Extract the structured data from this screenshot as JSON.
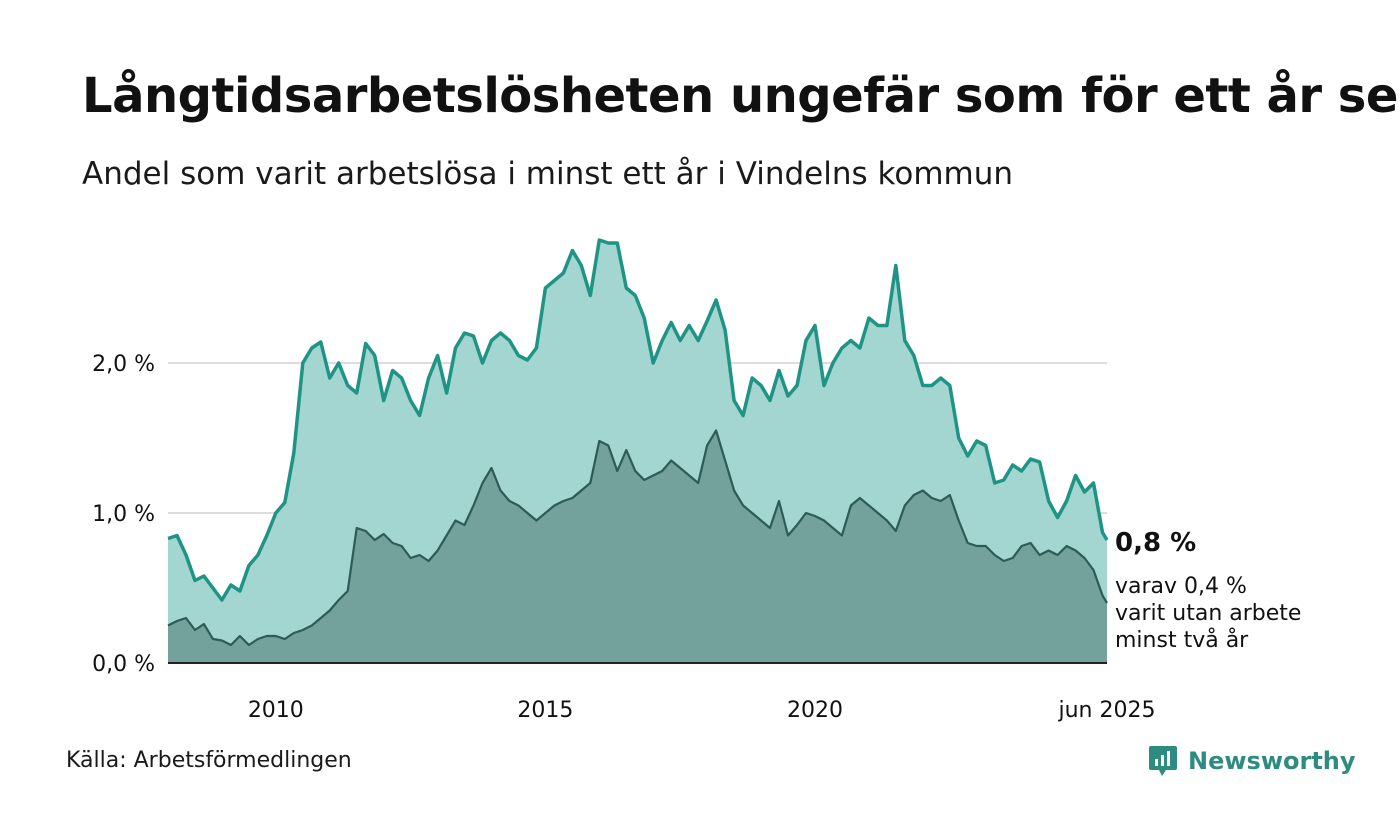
{
  "title": "Långtidsarbetslösheten ungefär som för ett år sen",
  "subtitle": "Andel som varit arbetslösa i minst ett år i Vindelns kommun",
  "source": "Källa: Arbetsförmedlingen",
  "brand": {
    "name": "Newsworthy",
    "icon": "newsworthy-logo-icon",
    "color": "#2e8b80"
  },
  "colors": {
    "total_line": "#1f9485",
    "total_fill": "#a3d6d1",
    "two_year_line": "#2c5c55",
    "two_year_fill": "#72a29b",
    "grid": "#dddddd"
  },
  "end_labels": {
    "total_value": "0,8 %",
    "two_year_text": [
      "varav 0,4 %",
      "varit utan arbete",
      "minst två år"
    ]
  },
  "chart_data": {
    "type": "area",
    "x_range": [
      "2008-01",
      "2025-06"
    ],
    "y_range": [
      0,
      3.0
    ],
    "grid": true,
    "y_ticks": [
      {
        "value": 0,
        "label": "0,0 %"
      },
      {
        "value": 1,
        "label": "1,0 %"
      },
      {
        "value": 2,
        "label": "2,0 %"
      }
    ],
    "x_ticks": [
      {
        "date": "2010-01",
        "label": "2010"
      },
      {
        "date": "2015-01",
        "label": "2015"
      },
      {
        "date": "2020-01",
        "label": "2020"
      },
      {
        "date": "2025-06",
        "label": "jun 2025"
      }
    ],
    "series": [
      {
        "key": "total",
        "points": [
          [
            "2008-01",
            0.83
          ],
          [
            "2008-03",
            0.85
          ],
          [
            "2008-05",
            0.72
          ],
          [
            "2008-07",
            0.55
          ],
          [
            "2008-09",
            0.58
          ],
          [
            "2008-11",
            0.5
          ],
          [
            "2009-01",
            0.42
          ],
          [
            "2009-03",
            0.52
          ],
          [
            "2009-05",
            0.48
          ],
          [
            "2009-07",
            0.65
          ],
          [
            "2009-09",
            0.72
          ],
          [
            "2009-11",
            0.85
          ],
          [
            "2010-01",
            1.0
          ],
          [
            "2010-03",
            1.07
          ],
          [
            "2010-05",
            1.4
          ],
          [
            "2010-07",
            2.0
          ],
          [
            "2010-09",
            2.1
          ],
          [
            "2010-11",
            2.14
          ],
          [
            "2011-01",
            1.9
          ],
          [
            "2011-03",
            2.0
          ],
          [
            "2011-05",
            1.85
          ],
          [
            "2011-07",
            1.8
          ],
          [
            "2011-09",
            2.13
          ],
          [
            "2011-11",
            2.05
          ],
          [
            "2012-01",
            1.75
          ],
          [
            "2012-03",
            1.95
          ],
          [
            "2012-05",
            1.9
          ],
          [
            "2012-07",
            1.75
          ],
          [
            "2012-09",
            1.65
          ],
          [
            "2012-11",
            1.9
          ],
          [
            "2013-01",
            2.05
          ],
          [
            "2013-03",
            1.8
          ],
          [
            "2013-05",
            2.1
          ],
          [
            "2013-07",
            2.2
          ],
          [
            "2013-09",
            2.18
          ],
          [
            "2013-11",
            2.0
          ],
          [
            "2014-01",
            2.15
          ],
          [
            "2014-03",
            2.2
          ],
          [
            "2014-05",
            2.15
          ],
          [
            "2014-07",
            2.05
          ],
          [
            "2014-09",
            2.02
          ],
          [
            "2014-11",
            2.1
          ],
          [
            "2015-01",
            2.5
          ],
          [
            "2015-03",
            2.55
          ],
          [
            "2015-05",
            2.6
          ],
          [
            "2015-07",
            2.75
          ],
          [
            "2015-09",
            2.65
          ],
          [
            "2015-11",
            2.45
          ],
          [
            "2016-01",
            2.82
          ],
          [
            "2016-03",
            2.8
          ],
          [
            "2016-05",
            2.8
          ],
          [
            "2016-07",
            2.5
          ],
          [
            "2016-09",
            2.45
          ],
          [
            "2016-11",
            2.3
          ],
          [
            "2017-01",
            2.0
          ],
          [
            "2017-03",
            2.15
          ],
          [
            "2017-05",
            2.27
          ],
          [
            "2017-07",
            2.15
          ],
          [
            "2017-09",
            2.25
          ],
          [
            "2017-11",
            2.15
          ],
          [
            "2018-01",
            2.28
          ],
          [
            "2018-03",
            2.42
          ],
          [
            "2018-05",
            2.22
          ],
          [
            "2018-07",
            1.75
          ],
          [
            "2018-09",
            1.65
          ],
          [
            "2018-11",
            1.9
          ],
          [
            "2019-01",
            1.85
          ],
          [
            "2019-03",
            1.75
          ],
          [
            "2019-05",
            1.95
          ],
          [
            "2019-07",
            1.78
          ],
          [
            "2019-09",
            1.85
          ],
          [
            "2019-11",
            2.15
          ],
          [
            "2020-01",
            2.25
          ],
          [
            "2020-03",
            1.85
          ],
          [
            "2020-05",
            2.0
          ],
          [
            "2020-07",
            2.1
          ],
          [
            "2020-09",
            2.15
          ],
          [
            "2020-11",
            2.1
          ],
          [
            "2021-01",
            2.3
          ],
          [
            "2021-03",
            2.25
          ],
          [
            "2021-05",
            2.25
          ],
          [
            "2021-07",
            2.65
          ],
          [
            "2021-09",
            2.15
          ],
          [
            "2021-11",
            2.05
          ],
          [
            "2022-01",
            1.85
          ],
          [
            "2022-03",
            1.85
          ],
          [
            "2022-05",
            1.9
          ],
          [
            "2022-07",
            1.85
          ],
          [
            "2022-09",
            1.5
          ],
          [
            "2022-11",
            1.38
          ],
          [
            "2023-01",
            1.48
          ],
          [
            "2023-03",
            1.45
          ],
          [
            "2023-05",
            1.2
          ],
          [
            "2023-07",
            1.22
          ],
          [
            "2023-09",
            1.32
          ],
          [
            "2023-11",
            1.28
          ],
          [
            "2024-01",
            1.36
          ],
          [
            "2024-03",
            1.34
          ],
          [
            "2024-05",
            1.08
          ],
          [
            "2024-07",
            0.97
          ],
          [
            "2024-09",
            1.08
          ],
          [
            "2024-11",
            1.25
          ],
          [
            "2025-01",
            1.14
          ],
          [
            "2025-03",
            1.2
          ],
          [
            "2025-05",
            0.87
          ],
          [
            "2025-06",
            0.82
          ]
        ]
      },
      {
        "key": "two_year",
        "points": [
          [
            "2008-01",
            0.25
          ],
          [
            "2008-03",
            0.28
          ],
          [
            "2008-05",
            0.3
          ],
          [
            "2008-07",
            0.22
          ],
          [
            "2008-09",
            0.26
          ],
          [
            "2008-11",
            0.16
          ],
          [
            "2009-01",
            0.15
          ],
          [
            "2009-03",
            0.12
          ],
          [
            "2009-05",
            0.18
          ],
          [
            "2009-07",
            0.12
          ],
          [
            "2009-09",
            0.16
          ],
          [
            "2009-11",
            0.18
          ],
          [
            "2010-01",
            0.18
          ],
          [
            "2010-03",
            0.16
          ],
          [
            "2010-05",
            0.2
          ],
          [
            "2010-07",
            0.22
          ],
          [
            "2010-09",
            0.25
          ],
          [
            "2010-11",
            0.3
          ],
          [
            "2011-01",
            0.35
          ],
          [
            "2011-03",
            0.42
          ],
          [
            "2011-05",
            0.48
          ],
          [
            "2011-07",
            0.9
          ],
          [
            "2011-09",
            0.88
          ],
          [
            "2011-11",
            0.82
          ],
          [
            "2012-01",
            0.86
          ],
          [
            "2012-03",
            0.8
          ],
          [
            "2012-05",
            0.78
          ],
          [
            "2012-07",
            0.7
          ],
          [
            "2012-09",
            0.72
          ],
          [
            "2012-11",
            0.68
          ],
          [
            "2013-01",
            0.75
          ],
          [
            "2013-03",
            0.85
          ],
          [
            "2013-05",
            0.95
          ],
          [
            "2013-07",
            0.92
          ],
          [
            "2013-09",
            1.05
          ],
          [
            "2013-11",
            1.2
          ],
          [
            "2014-01",
            1.3
          ],
          [
            "2014-03",
            1.15
          ],
          [
            "2014-05",
            1.08
          ],
          [
            "2014-07",
            1.05
          ],
          [
            "2014-09",
            1.0
          ],
          [
            "2014-11",
            0.95
          ],
          [
            "2015-01",
            1.0
          ],
          [
            "2015-03",
            1.05
          ],
          [
            "2015-05",
            1.08
          ],
          [
            "2015-07",
            1.1
          ],
          [
            "2015-09",
            1.15
          ],
          [
            "2015-11",
            1.2
          ],
          [
            "2016-01",
            1.48
          ],
          [
            "2016-03",
            1.45
          ],
          [
            "2016-05",
            1.28
          ],
          [
            "2016-07",
            1.42
          ],
          [
            "2016-09",
            1.28
          ],
          [
            "2016-11",
            1.22
          ],
          [
            "2017-01",
            1.25
          ],
          [
            "2017-03",
            1.28
          ],
          [
            "2017-05",
            1.35
          ],
          [
            "2017-07",
            1.3
          ],
          [
            "2017-09",
            1.25
          ],
          [
            "2017-11",
            1.2
          ],
          [
            "2018-01",
            1.45
          ],
          [
            "2018-03",
            1.55
          ],
          [
            "2018-05",
            1.35
          ],
          [
            "2018-07",
            1.15
          ],
          [
            "2018-09",
            1.05
          ],
          [
            "2018-11",
            1.0
          ],
          [
            "2019-01",
            0.95
          ],
          [
            "2019-03",
            0.9
          ],
          [
            "2019-05",
            1.08
          ],
          [
            "2019-07",
            0.85
          ],
          [
            "2019-09",
            0.92
          ],
          [
            "2019-11",
            1.0
          ],
          [
            "2020-01",
            0.98
          ],
          [
            "2020-03",
            0.95
          ],
          [
            "2020-05",
            0.9
          ],
          [
            "2020-07",
            0.85
          ],
          [
            "2020-09",
            1.05
          ],
          [
            "2020-11",
            1.1
          ],
          [
            "2021-01",
            1.05
          ],
          [
            "2021-03",
            1.0
          ],
          [
            "2021-05",
            0.95
          ],
          [
            "2021-07",
            0.88
          ],
          [
            "2021-09",
            1.05
          ],
          [
            "2021-11",
            1.12
          ],
          [
            "2022-01",
            1.15
          ],
          [
            "2022-03",
            1.1
          ],
          [
            "2022-05",
            1.08
          ],
          [
            "2022-07",
            1.12
          ],
          [
            "2022-09",
            0.95
          ],
          [
            "2022-11",
            0.8
          ],
          [
            "2023-01",
            0.78
          ],
          [
            "2023-03",
            0.78
          ],
          [
            "2023-05",
            0.72
          ],
          [
            "2023-07",
            0.68
          ],
          [
            "2023-09",
            0.7
          ],
          [
            "2023-11",
            0.78
          ],
          [
            "2024-01",
            0.8
          ],
          [
            "2024-03",
            0.72
          ],
          [
            "2024-05",
            0.75
          ],
          [
            "2024-07",
            0.72
          ],
          [
            "2024-09",
            0.78
          ],
          [
            "2024-11",
            0.75
          ],
          [
            "2025-01",
            0.7
          ],
          [
            "2025-03",
            0.62
          ],
          [
            "2025-05",
            0.45
          ],
          [
            "2025-06",
            0.4
          ]
        ]
      }
    ]
  }
}
